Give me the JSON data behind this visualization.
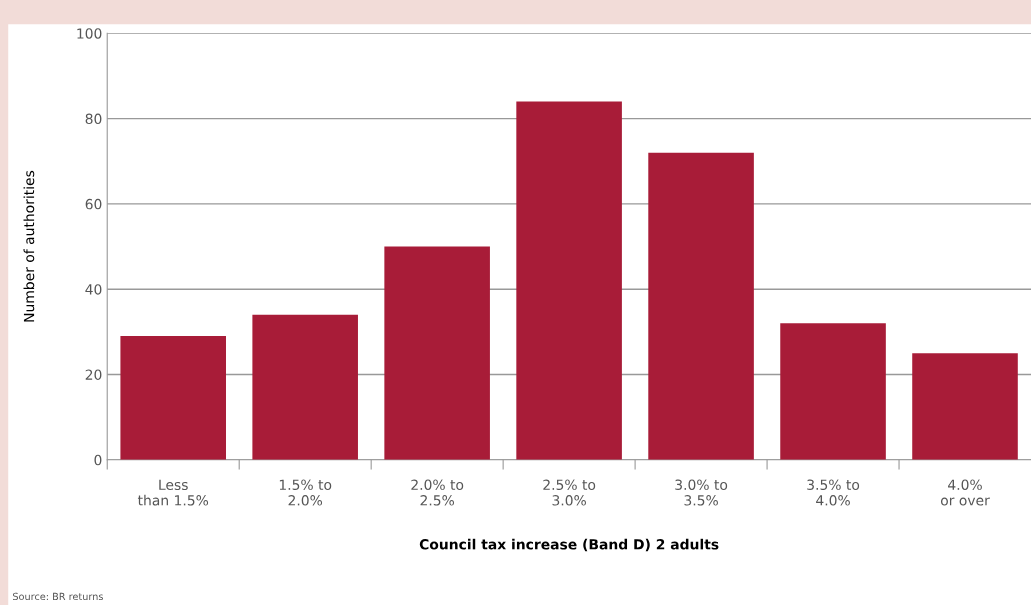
{
  "chart_data": {
    "type": "bar",
    "xlabel": "Council tax increase (Band D) 2 adults",
    "ylabel": "Number of authorities",
    "categories": [
      "Less\nthan 1.5%",
      "1.5% to\n2.0%",
      "2.0% to\n2.5%",
      "2.5% to\n3.0%",
      "3.0% to\n3.5%",
      "3.5% to\n4.0%",
      "4.0%\nor over"
    ],
    "values": [
      29,
      34,
      50,
      84,
      72,
      32,
      25
    ],
    "color": "#a81c38",
    "ylim": [
      0,
      100
    ],
    "yticks": [
      0,
      20,
      40,
      60,
      80,
      100
    ],
    "grid": "y",
    "annotations": [
      "Source: BR returns"
    ]
  }
}
